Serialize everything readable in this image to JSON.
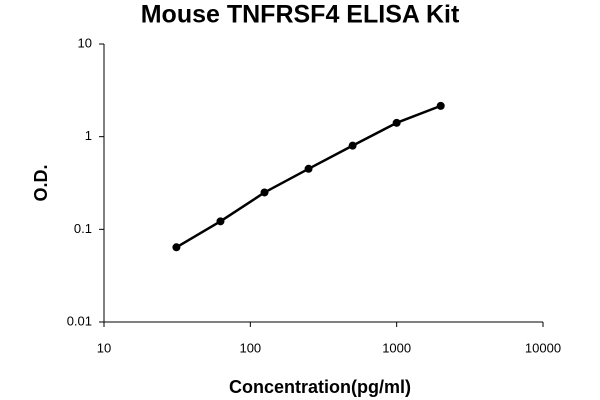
{
  "chart_data": {
    "type": "scatter",
    "title": "Mouse TNFRSF4 ELISA Kit",
    "x_label": "Concentration(pg/ml)",
    "y_label": "O.D.",
    "x": [
      31.25,
      62.5,
      125,
      250,
      500,
      1000,
      2000
    ],
    "series": [
      {
        "values": [
          0.064,
          0.122,
          0.25,
          0.45,
          0.8,
          1.41,
          2.15
        ],
        "color": "#000000"
      }
    ],
    "xscale": "log",
    "yscale": "log",
    "xlim": [
      10,
      10000
    ],
    "ylim": [
      0.01,
      10
    ],
    "xticks": [
      10,
      100,
      1000,
      10000
    ],
    "yticks": [
      0.01,
      0.1,
      1,
      10
    ],
    "connect_points": true,
    "grid": false
  }
}
